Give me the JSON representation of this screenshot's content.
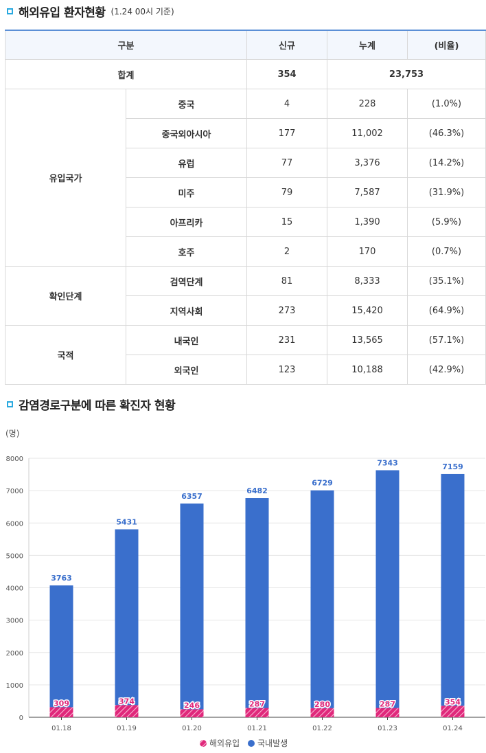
{
  "section1": {
    "title": "해외유입 환자현황",
    "subtitle": "(1.24 00시 기준)"
  },
  "table": {
    "headers": [
      "구분",
      "신규",
      "누계",
      "(비율)"
    ],
    "total": {
      "label": "합계",
      "new": "354",
      "cumulative": "23,753"
    },
    "groups": [
      {
        "label": "유입국가",
        "rows": [
          {
            "label": "중국",
            "new": "4",
            "cumulative": "228",
            "ratio": "(1.0%)"
          },
          {
            "label": "중국외아시아",
            "new": "177",
            "cumulative": "11,002",
            "ratio": "(46.3%)"
          },
          {
            "label": "유럽",
            "new": "77",
            "cumulative": "3,376",
            "ratio": "(14.2%)"
          },
          {
            "label": "미주",
            "new": "79",
            "cumulative": "7,587",
            "ratio": "(31.9%)"
          },
          {
            "label": "아프리카",
            "new": "15",
            "cumulative": "1,390",
            "ratio": "(5.9%)"
          },
          {
            "label": "호주",
            "new": "2",
            "cumulative": "170",
            "ratio": "(0.7%)"
          }
        ]
      },
      {
        "label": "확인단계",
        "rows": [
          {
            "label": "검역단계",
            "new": "81",
            "cumulative": "8,333",
            "ratio": "(35.1%)"
          },
          {
            "label": "지역사회",
            "new": "273",
            "cumulative": "15,420",
            "ratio": "(64.9%)"
          }
        ]
      },
      {
        "label": "국적",
        "rows": [
          {
            "label": "내국인",
            "new": "231",
            "cumulative": "13,565",
            "ratio": "(57.1%)"
          },
          {
            "label": "외국인",
            "new": "123",
            "cumulative": "10,188",
            "ratio": "(42.9%)"
          }
        ]
      }
    ]
  },
  "section2": {
    "title": "감염경로구분에 따른 확진자 현황"
  },
  "chart_data": {
    "type": "bar",
    "stacked": true,
    "unit": "(명)",
    "categories": [
      "01.18",
      "01.19",
      "01.20",
      "01.21",
      "01.22",
      "01.23",
      "01.24"
    ],
    "series": [
      {
        "name": "해외유입",
        "values": [
          309,
          374,
          246,
          287,
          280,
          287,
          354
        ],
        "color": "#e0287b",
        "pattern": "hatched"
      },
      {
        "name": "국내발생",
        "values": [
          3763,
          5431,
          6357,
          6482,
          6729,
          7343,
          7159
        ],
        "color": "#3a6fcc"
      }
    ],
    "ylim": [
      0,
      8000
    ],
    "yticks": [
      "0",
      "1000",
      "2000",
      "3000",
      "4000",
      "5000",
      "6000",
      "7000",
      "8000"
    ],
    "grid": true,
    "legend": "bottom-center",
    "colors": {
      "domestic_label": "#3a6fcc",
      "overseas_label": "#e0287b"
    }
  }
}
